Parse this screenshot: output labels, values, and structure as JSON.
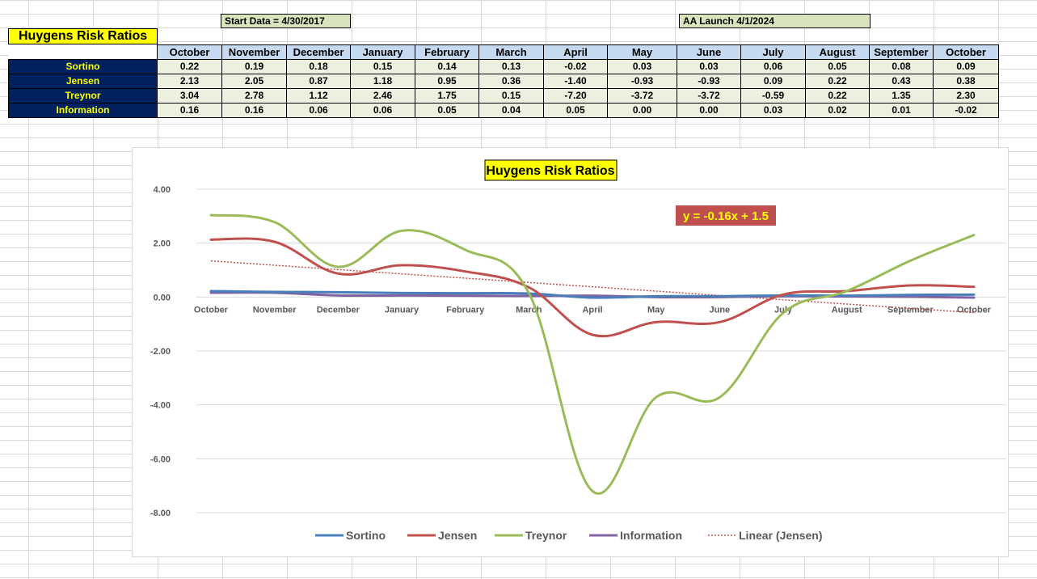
{
  "notes": {
    "start_data": "Start Data = 4/30/2017",
    "aa_launch": "AA Launch 4/1/2024"
  },
  "table": {
    "title": "Huygens Risk Ratios",
    "months": [
      "October",
      "November",
      "December",
      "January",
      "February",
      "March",
      "April",
      "May",
      "June",
      "July",
      "August",
      "September",
      "October"
    ],
    "rows": [
      {
        "label": "Sortino",
        "values": [
          "0.22",
          "0.19",
          "0.18",
          "0.15",
          "0.14",
          "0.13",
          "-0.02",
          "0.03",
          "0.03",
          "0.06",
          "0.05",
          "0.08",
          "0.09"
        ]
      },
      {
        "label": "Jensen",
        "values": [
          "2.13",
          "2.05",
          "0.87",
          "1.18",
          "0.95",
          "0.36",
          "-1.40",
          "-0.93",
          "-0.93",
          "0.09",
          "0.22",
          "0.43",
          "0.38"
        ]
      },
      {
        "label": "Treynor",
        "values": [
          "3.04",
          "2.78",
          "1.12",
          "2.46",
          "1.75",
          "0.15",
          "-7.20",
          "-3.72",
          "-3.72",
          "-0.59",
          "0.22",
          "1.35",
          "2.30"
        ]
      },
      {
        "label": "Information",
        "values": [
          "0.16",
          "0.16",
          "0.06",
          "0.06",
          "0.05",
          "0.04",
          "0.05",
          "0.00",
          "0.00",
          "0.03",
          "0.02",
          "0.01",
          "-0.02"
        ]
      }
    ]
  },
  "chart_data": {
    "type": "line",
    "title": "Huygens Risk Ratios",
    "categories": [
      "October",
      "November",
      "December",
      "January",
      "February",
      "March",
      "April",
      "May",
      "June",
      "July",
      "August",
      "September",
      "October"
    ],
    "ylim": [
      -8,
      4
    ],
    "yticks": [
      "4.00",
      "2.00",
      "0.00",
      "-2.00",
      "-4.00",
      "-6.00",
      "-8.00"
    ],
    "grid": true,
    "legend_position": "bottom",
    "series": [
      {
        "name": "Sortino",
        "color": "#4a7ebb",
        "values": [
          0.22,
          0.19,
          0.18,
          0.15,
          0.14,
          0.13,
          -0.02,
          0.03,
          0.03,
          0.06,
          0.05,
          0.08,
          0.09
        ]
      },
      {
        "name": "Jensen",
        "color": "#c0504d",
        "values": [
          2.13,
          2.05,
          0.87,
          1.18,
          0.95,
          0.36,
          -1.4,
          -0.93,
          -0.93,
          0.09,
          0.22,
          0.43,
          0.38
        ]
      },
      {
        "name": "Treynor",
        "color": "#9bbb59",
        "values": [
          3.04,
          2.78,
          1.12,
          2.46,
          1.75,
          0.15,
          -7.2,
          -3.72,
          -3.72,
          -0.59,
          0.22,
          1.35,
          2.3
        ]
      },
      {
        "name": "Information",
        "color": "#8064a2",
        "values": [
          0.16,
          0.16,
          0.06,
          0.06,
          0.05,
          0.04,
          0.05,
          0.0,
          0.0,
          0.03,
          0.02,
          0.01,
          -0.02
        ]
      }
    ],
    "trendline": {
      "name": "Linear (Jensen)",
      "color": "#c0504d",
      "slope": -0.16,
      "intercept": 1.5,
      "equation": "y = -0.16x + 1.5"
    }
  }
}
